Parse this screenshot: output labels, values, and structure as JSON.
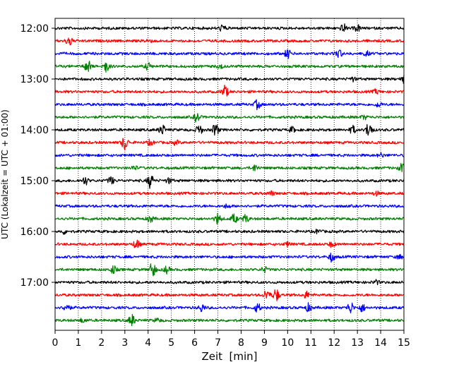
{
  "chart_data": {
    "type": "line",
    "title": "",
    "xlabel": "Zeit  [min]",
    "ylabel": "UTC (Lokalzeit = UTC + 01:00)",
    "xlim": [
      0,
      15
    ],
    "x_ticks": [
      0,
      1,
      2,
      3,
      4,
      5,
      6,
      7,
      8,
      9,
      10,
      11,
      12,
      13,
      14,
      15
    ],
    "y_ticks": [
      "12:00",
      "13:00",
      "14:00",
      "15:00",
      "16:00",
      "17:00"
    ],
    "grid": "vertical-dotted",
    "colors": [
      "#000000",
      "#ff0000",
      "#0000ff",
      "#008000"
    ],
    "traces": [
      {
        "start": "12:00",
        "events": [
          [
            7.2,
            0.5
          ],
          [
            12.4,
            0.6
          ],
          [
            13.0,
            0.5
          ]
        ]
      },
      {
        "start": "12:15",
        "events": [
          [
            0.6,
            0.8
          ],
          [
            4.0,
            0.3
          ]
        ]
      },
      {
        "start": "12:30",
        "events": [
          [
            10.0,
            0.7
          ],
          [
            12.2,
            0.7
          ],
          [
            13.4,
            0.3
          ]
        ]
      },
      {
        "start": "12:45",
        "events": [
          [
            1.4,
            1.0
          ],
          [
            2.2,
            0.9
          ],
          [
            4.0,
            0.5
          ],
          [
            7.1,
            0.3
          ]
        ]
      },
      {
        "start": "13:00",
        "events": [
          [
            12.8,
            0.3
          ],
          [
            15.0,
            0.5
          ]
        ]
      },
      {
        "start": "13:15",
        "events": [
          [
            7.3,
            1.0
          ],
          [
            13.8,
            0.3
          ]
        ]
      },
      {
        "start": "13:30",
        "events": [
          [
            8.7,
            0.7
          ],
          [
            13.9,
            0.4
          ]
        ]
      },
      {
        "start": "13:45",
        "events": [
          [
            6.1,
            0.7
          ],
          [
            13.3,
            0.3
          ]
        ]
      },
      {
        "start": "14:00",
        "events": [
          [
            4.6,
            0.8
          ],
          [
            6.2,
            0.8
          ],
          [
            6.9,
            1.0
          ],
          [
            10.2,
            0.4
          ],
          [
            12.8,
            0.6
          ],
          [
            13.5,
            1.3
          ]
        ]
      },
      {
        "start": "14:15",
        "events": [
          [
            3.0,
            1.2
          ],
          [
            4.1,
            0.4
          ],
          [
            5.2,
            0.3
          ]
        ]
      },
      {
        "start": "14:30",
        "events": [
          [
            14.0,
            0.3
          ]
        ]
      },
      {
        "start": "14:45",
        "events": [
          [
            3.4,
            0.3
          ],
          [
            8.6,
            0.5
          ],
          [
            14.9,
            0.6
          ]
        ]
      },
      {
        "start": "15:00",
        "events": [
          [
            1.3,
            0.6
          ],
          [
            2.4,
            0.6
          ],
          [
            4.1,
            1.1
          ],
          [
            4.9,
            0.4
          ]
        ]
      },
      {
        "start": "15:15",
        "events": [
          [
            9.3,
            0.3
          ],
          [
            13.8,
            0.3
          ]
        ]
      },
      {
        "start": "15:30",
        "events": [
          [
            7.4,
            0.3
          ]
        ]
      },
      {
        "start": "15:45",
        "events": [
          [
            4.1,
            0.5
          ],
          [
            7.0,
            0.8
          ],
          [
            7.7,
            0.7
          ],
          [
            8.2,
            0.6
          ]
        ]
      },
      {
        "start": "16:00",
        "events": [
          [
            0.4,
            0.3
          ],
          [
            11.3,
            0.3
          ]
        ]
      },
      {
        "start": "16:15",
        "events": [
          [
            3.5,
            0.7
          ],
          [
            10.0,
            0.3
          ],
          [
            11.9,
            0.4
          ]
        ]
      },
      {
        "start": "16:30",
        "events": [
          [
            11.9,
            0.7
          ],
          [
            14.8,
            0.3
          ]
        ]
      },
      {
        "start": "16:45",
        "events": [
          [
            2.5,
            0.6
          ],
          [
            4.2,
            1.2
          ],
          [
            4.8,
            0.5
          ],
          [
            9.0,
            0.4
          ]
        ]
      },
      {
        "start": "17:00",
        "events": [
          [
            13.8,
            0.3
          ]
        ]
      },
      {
        "start": "17:15",
        "events": [
          [
            9.1,
            0.8
          ],
          [
            9.5,
            1.0
          ],
          [
            10.8,
            0.5
          ]
        ]
      },
      {
        "start": "17:30",
        "events": [
          [
            0.5,
            0.7
          ],
          [
            6.3,
            0.6
          ],
          [
            8.7,
            0.7
          ],
          [
            10.9,
            0.6
          ],
          [
            12.7,
            0.9
          ],
          [
            13.2,
            0.6
          ]
        ]
      },
      {
        "start": "17:45",
        "events": [
          [
            1.2,
            0.3
          ],
          [
            3.3,
            0.9
          ],
          [
            4.4,
            0.3
          ]
        ]
      }
    ]
  }
}
